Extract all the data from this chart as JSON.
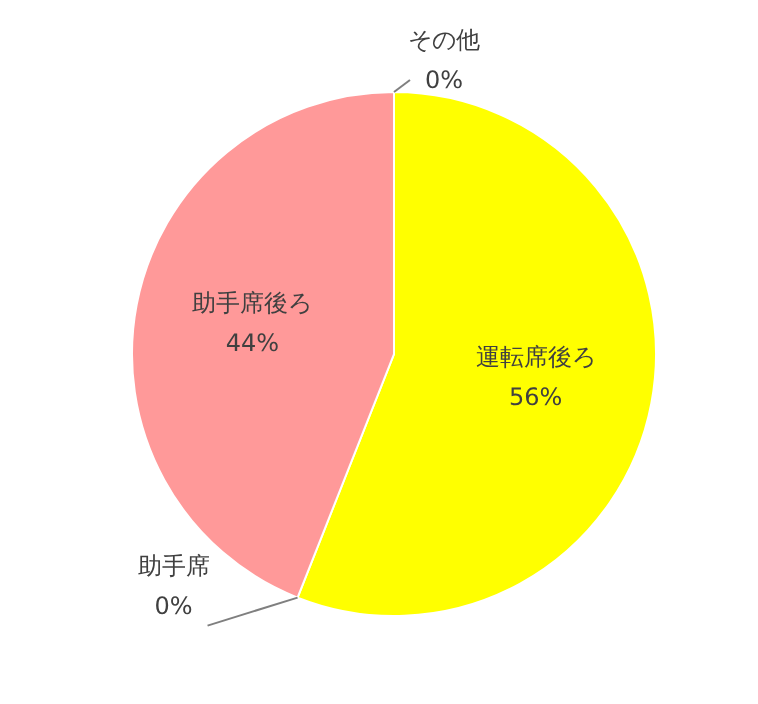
{
  "chart_data": {
    "type": "pie",
    "categories": [
      "運転席後ろ",
      "助手席",
      "助手席後ろ",
      "その他"
    ],
    "values": [
      56,
      0,
      44,
      0
    ],
    "colors": [
      "#ffff00",
      "#99ccff",
      "#ff9999",
      "#c0c0c0"
    ],
    "value_labels": [
      "56%",
      "0%",
      "44%",
      "0%"
    ]
  }
}
